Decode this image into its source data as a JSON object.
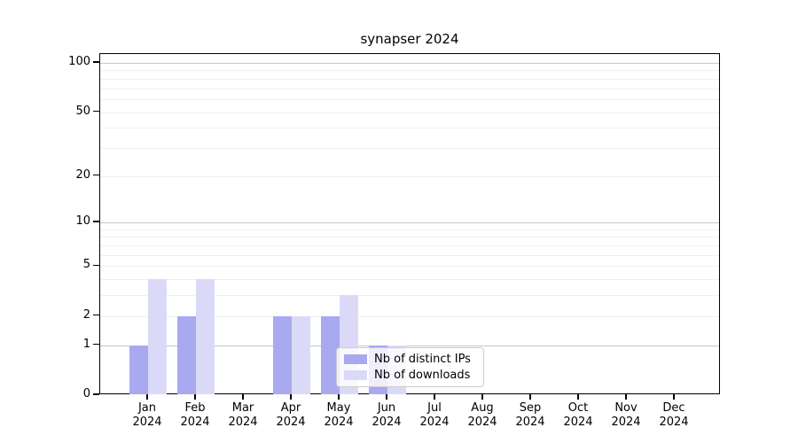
{
  "title": "synapser 2024",
  "colors": {
    "distinct_ips": "#a9a9f0",
    "downloads": "#dadaf8",
    "grid_major": "#c6c6c6",
    "grid_minor": "#efefef",
    "axis_frame": "#000000",
    "legend_border": "#cccccc",
    "background": "#ffffff"
  },
  "legend": {
    "items": [
      {
        "label": "Nb of distinct IPs",
        "color_key": "distinct_ips"
      },
      {
        "label": "Nb of downloads",
        "color_key": "downloads"
      }
    ]
  },
  "chart_data": {
    "type": "bar",
    "title": "synapser 2024",
    "categories": [
      "Jan 2024",
      "Feb 2024",
      "Mar 2024",
      "Apr 2024",
      "May 2024",
      "Jun 2024",
      "Jul 2024",
      "Aug 2024",
      "Sep 2024",
      "Oct 2024",
      "Nov 2024",
      "Dec 2024"
    ],
    "series": [
      {
        "name": "Nb of distinct IPs",
        "color_key": "distinct_ips",
        "values": [
          1,
          2,
          0,
          2,
          2,
          1,
          0,
          0,
          0,
          0,
          0,
          0
        ]
      },
      {
        "name": "Nb of downloads",
        "color_key": "downloads",
        "values": [
          4,
          4,
          0,
          2,
          3,
          1,
          0,
          0,
          0,
          0,
          0,
          0
        ]
      }
    ],
    "yscale": "log1p",
    "ylim": [
      0,
      113
    ],
    "y_tick_values": [
      0,
      1,
      2,
      5,
      10,
      20,
      50,
      100
    ],
    "y_tick_labels": [
      "0",
      "1",
      "2",
      "5",
      "10",
      "20",
      "50",
      "100"
    ],
    "grid": {
      "major_values": [
        1,
        10,
        100
      ],
      "minor_values": [
        2,
        3,
        4,
        5,
        6,
        7,
        8,
        9,
        20,
        30,
        40,
        50,
        60,
        70,
        80,
        90
      ]
    },
    "legend_position": "lower right inside",
    "xlabel": "",
    "ylabel": ""
  }
}
